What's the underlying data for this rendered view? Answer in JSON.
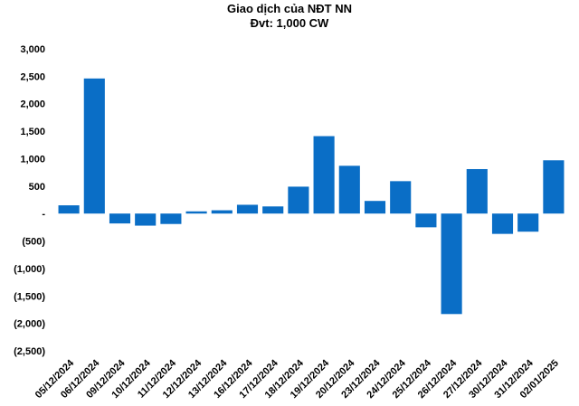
{
  "chart_data": {
    "type": "bar",
    "title": "Giao dịch của NĐT NN",
    "subtitle": "Đvt: 1,000 CW",
    "xlabel": "",
    "ylabel": "",
    "ylim": [
      -2500,
      3000
    ],
    "yticks": [
      3000,
      2500,
      2000,
      1500,
      1000,
      500,
      0,
      -500,
      -1000,
      -1500,
      -2000,
      -2500
    ],
    "ytick_labels": [
      "3,000",
      "2,500",
      "2,000",
      "1,500",
      "1,000",
      "500",
      "-",
      "(500)",
      "(1,000)",
      "(1,500)",
      "(2,000)",
      "(2,500)"
    ],
    "grid": false,
    "legend": "none",
    "bar_color": "#0A6EC6",
    "categories": [
      "05/12/2024",
      "06/12/2024",
      "09/12/2024",
      "10/12/2024",
      "11/12/2024",
      "12/12/2024",
      "13/12/2024",
      "16/12/2024",
      "17/12/2024",
      "18/12/2024",
      "19/12/2024",
      "20/12/2024",
      "23/12/2024",
      "24/12/2024",
      "25/12/2024",
      "26/12/2024",
      "27/12/2024",
      "30/12/2024",
      "31/12/2024",
      "02/01/2025"
    ],
    "values": [
      150,
      2460,
      -180,
      -220,
      -190,
      40,
      60,
      160,
      130,
      490,
      1410,
      870,
      230,
      590,
      -250,
      -1830,
      810,
      -370,
      -330,
      970
    ]
  }
}
